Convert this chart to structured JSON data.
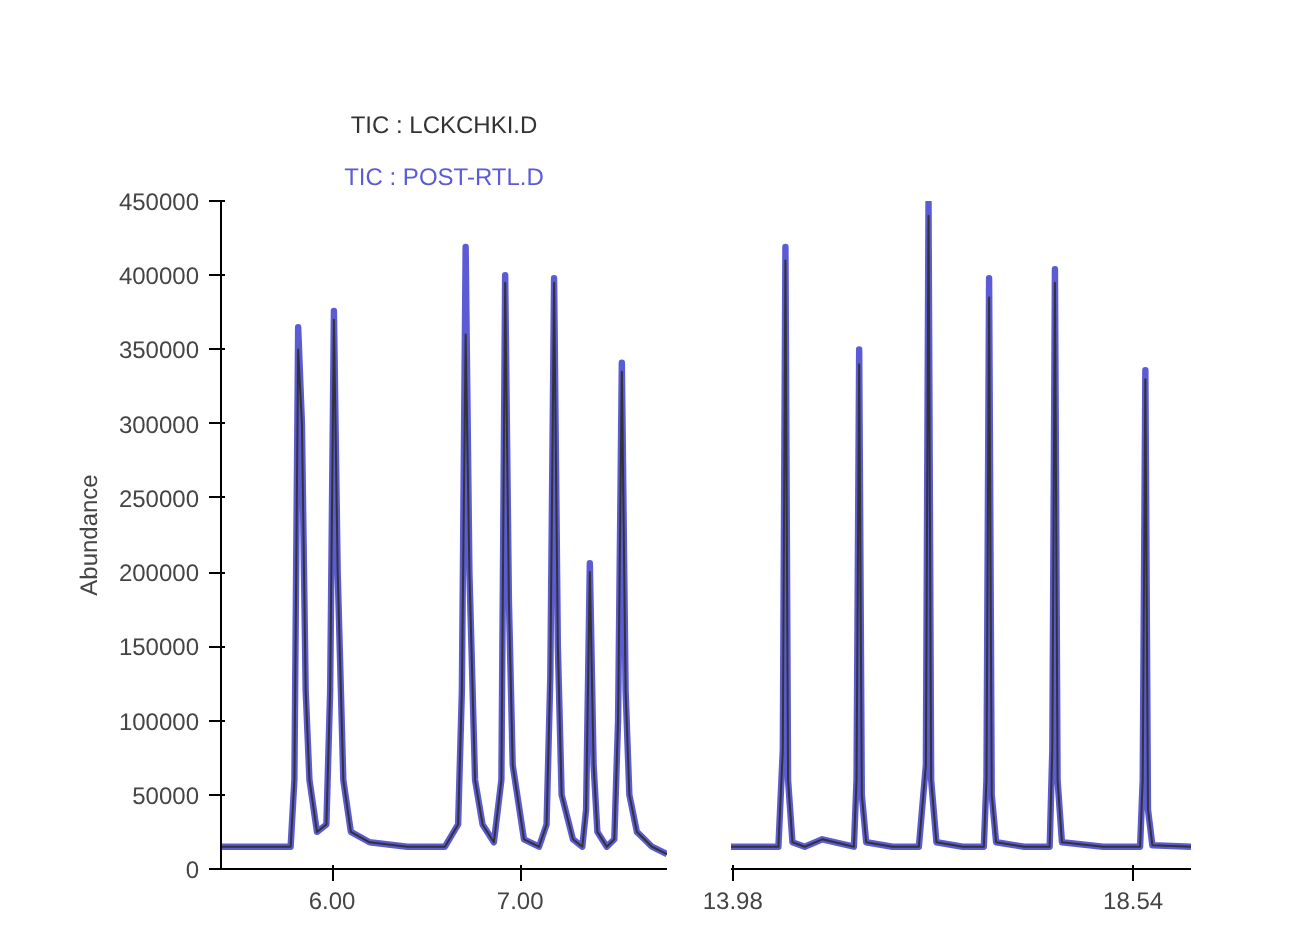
{
  "chart_data": [
    {
      "type": "line",
      "ylabel": "Abundance",
      "legend": "top",
      "xlim": [
        5.41,
        7.78
      ],
      "ylim": [
        0,
        450000
      ],
      "xticks": [
        {
          "value": 6,
          "label": "6.00"
        },
        {
          "value": 7,
          "label": "7.00"
        }
      ],
      "yticks": [
        0,
        50000,
        100000,
        150000,
        200000,
        250000,
        300000,
        350000,
        400000,
        450000
      ],
      "x": [
        5.41,
        5.78,
        5.8,
        5.82,
        5.84,
        5.86,
        5.88,
        5.92,
        5.97,
        5.99,
        6.01,
        6.03,
        6.06,
        6.1,
        6.2,
        6.4,
        6.6,
        6.67,
        6.69,
        6.71,
        6.73,
        6.76,
        6.8,
        6.86,
        6.9,
        6.92,
        6.94,
        6.96,
        7.02,
        7.1,
        7.14,
        7.16,
        7.18,
        7.2,
        7.22,
        7.28,
        7.33,
        7.35,
        7.37,
        7.39,
        7.41,
        7.46,
        7.5,
        7.52,
        7.54,
        7.56,
        7.58,
        7.62,
        7.66,
        7.7,
        7.78
      ],
      "series": [
        {
          "name": "TIC : LCKCHKI.D",
          "color": "#333333",
          "values": [
            15000,
            15000,
            60000,
            350000,
            300000,
            120000,
            60000,
            25000,
            30000,
            120000,
            370000,
            200000,
            60000,
            25000,
            18000,
            15000,
            15000,
            30000,
            120000,
            360000,
            200000,
            60000,
            30000,
            18000,
            60000,
            395000,
            180000,
            70000,
            20000,
            15000,
            30000,
            130000,
            395000,
            150000,
            50000,
            20000,
            15000,
            40000,
            200000,
            70000,
            25000,
            15000,
            20000,
            100000,
            335000,
            120000,
            50000,
            25000,
            20000,
            15000,
            10000
          ]
        },
        {
          "name": "TIC : POST-RTL.D",
          "color": "#5b5bd6",
          "values": [
            15000,
            15000,
            60000,
            365000,
            300000,
            120000,
            60000,
            25000,
            30000,
            120000,
            376000,
            200000,
            60000,
            25000,
            18000,
            15000,
            15000,
            30000,
            120000,
            419000,
            200000,
            60000,
            30000,
            18000,
            60000,
            400000,
            180000,
            70000,
            20000,
            15000,
            30000,
            130000,
            398000,
            150000,
            50000,
            20000,
            15000,
            40000,
            206000,
            70000,
            25000,
            15000,
            20000,
            100000,
            341000,
            120000,
            50000,
            25000,
            20000,
            15000,
            10000
          ]
        }
      ]
    },
    {
      "type": "line",
      "tick_labels": "x",
      "xlim": [
        13.96,
        19.2
      ],
      "ylim": [
        0,
        450000
      ],
      "xticks": [
        {
          "value": 13.98,
          "label": "13.98"
        },
        {
          "value": 18.54,
          "label": "18.54"
        }
      ],
      "yticks": [
        0,
        50000,
        100000,
        150000,
        200000,
        250000,
        300000,
        350000,
        400000,
        450000
      ],
      "x": [
        13.96,
        14.5,
        14.55,
        14.58,
        14.61,
        14.66,
        14.8,
        15.0,
        15.36,
        15.39,
        15.42,
        15.45,
        15.5,
        15.8,
        16.1,
        16.18,
        16.21,
        16.24,
        16.3,
        16.6,
        16.84,
        16.87,
        16.9,
        16.93,
        16.98,
        17.3,
        17.59,
        17.62,
        17.65,
        17.68,
        17.73,
        18.2,
        18.62,
        18.65,
        18.68,
        18.71,
        18.76,
        19.2
      ],
      "series": [
        {
          "color": "#333333",
          "values": [
            15000,
            15000,
            80000,
            410000,
            60000,
            18000,
            15000,
            20000,
            15000,
            60000,
            340000,
            50000,
            18000,
            15000,
            15000,
            70000,
            440000,
            60000,
            18000,
            15000,
            15000,
            60000,
            385000,
            50000,
            18000,
            15000,
            15000,
            80000,
            395000,
            60000,
            18000,
            15000,
            15000,
            60000,
            330000,
            40000,
            16000,
            15000
          ]
        },
        {
          "color": "#5b5bd6",
          "values": [
            15000,
            15000,
            80000,
            419000,
            60000,
            18000,
            15000,
            20000,
            15000,
            60000,
            350000,
            50000,
            18000,
            15000,
            15000,
            70000,
            449000,
            60000,
            18000,
            15000,
            15000,
            60000,
            398000,
            50000,
            18000,
            15000,
            15000,
            80000,
            404000,
            60000,
            18000,
            15000,
            15000,
            60000,
            336000,
            40000,
            16000,
            15000
          ]
        }
      ]
    }
  ]
}
